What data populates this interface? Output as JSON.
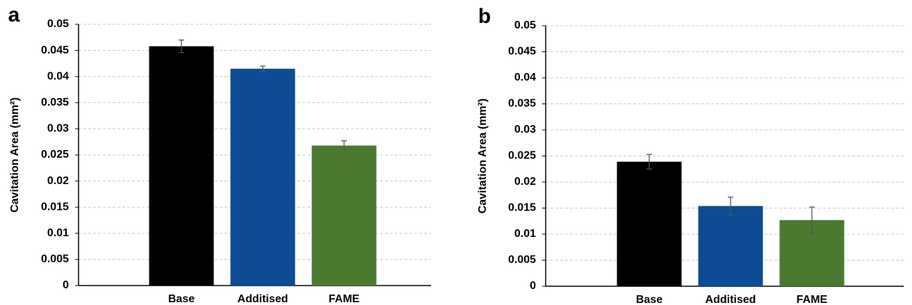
{
  "chart_data": [
    {
      "type": "bar",
      "panel": "a",
      "ylabel": "Cavitation Area (mm²)",
      "categories": [
        "Base",
        "Additised",
        "FAME"
      ],
      "values": [
        0.0458,
        0.0415,
        0.0268
      ],
      "errors": [
        0.0012,
        0.0005,
        0.0009
      ],
      "colors": [
        "#000000",
        "#0d4c94",
        "#4a7a30"
      ],
      "ylim": [
        0,
        0.05
      ],
      "yticks": [
        0,
        0.005,
        0.01,
        0.015,
        0.02,
        0.025,
        0.03,
        0.035,
        0.04,
        0.045,
        0.05
      ],
      "grid": true
    },
    {
      "type": "bar",
      "panel": "b",
      "ylabel": "Cavitation Area (mm²)",
      "categories": [
        "Base",
        "Additised",
        "FAME"
      ],
      "values": [
        0.0239,
        0.0154,
        0.0127
      ],
      "errors": [
        0.0014,
        0.0017,
        0.0025
      ],
      "colors": [
        "#000000",
        "#0d4c94",
        "#4a7a30"
      ],
      "ylim": [
        0,
        0.05
      ],
      "yticks": [
        0,
        0.005,
        0.01,
        0.015,
        0.02,
        0.025,
        0.03,
        0.035,
        0.04,
        0.045,
        0.05
      ],
      "grid": true
    }
  ]
}
